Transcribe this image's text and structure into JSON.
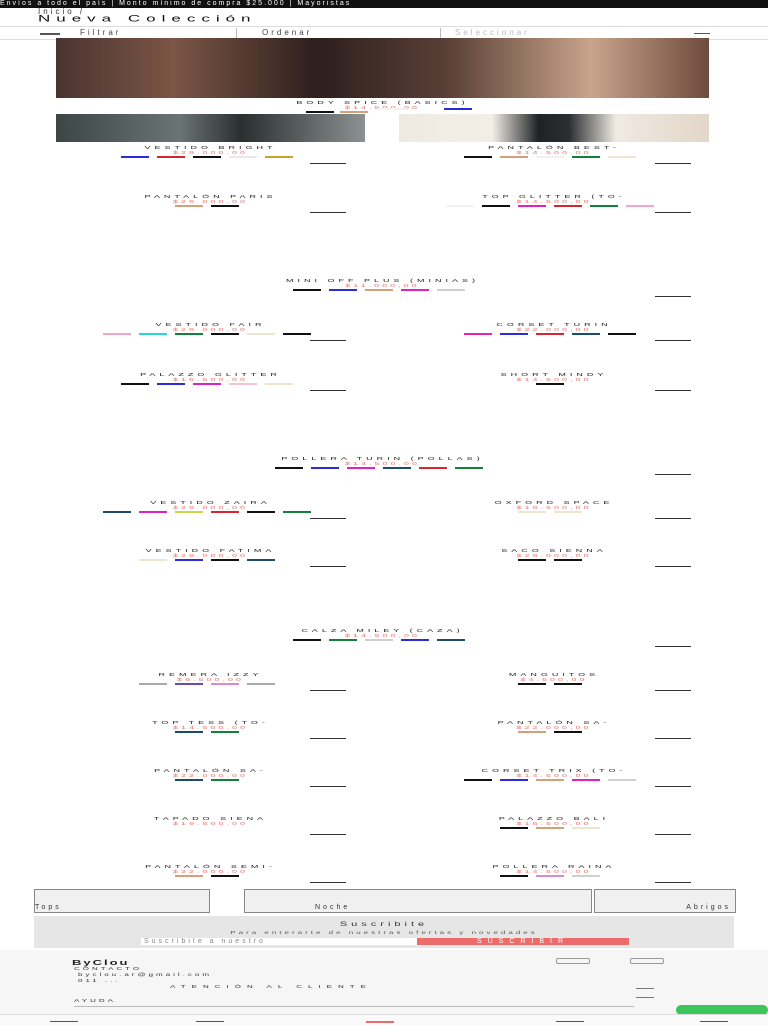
{
  "announcement": "Envíos a todo el país | Monto mínimo de compra $25.000 | Mayoristas",
  "breadcrumb": "Inicio /",
  "page_title": "Nueva Colección",
  "toolbar": {
    "filter_label": "Filtrar",
    "sort_label": "Ordenar",
    "sort_value": "Seleccionar"
  },
  "featured": {
    "name": "BODY SPICE (BASICS)",
    "price": "$14.500,00"
  },
  "products": [
    {
      "name": "VESTIDO BRIGHT",
      "price": "$29.000,00"
    },
    {
      "name": "PANTALÓN BEST-",
      "price": "$14.500,00"
    },
    {
      "name": "PANTALÓN PARIS",
      "price": "$29.000,00"
    },
    {
      "name": "TOP GLITTER (TO-",
      "price": "$14.500,00"
    },
    {
      "name": "MINI OFF PLUS (MINIAS)",
      "price": "$11.000,00"
    },
    {
      "name": "VESTIDO FAIR",
      "price": "$29.000,00"
    },
    {
      "name": "CORSET TURIN",
      "price": "$22.000,00"
    },
    {
      "name": "PALAZZO GLITTER",
      "price": "$16.500,00"
    },
    {
      "name": "SHORT MINDY",
      "price": "$14.500,00"
    },
    {
      "name": "POLLERA TURIN (POLLAS)",
      "price": "$14.500,00"
    },
    {
      "name": "VESTIDO ZAIRA",
      "price": "$29.000,00"
    },
    {
      "name": "OXFORD SPACE",
      "price": "$16.500,00"
    },
    {
      "name": "VESTIDO FATIMA",
      "price": "$29.000,00"
    },
    {
      "name": "SACO SIENNA",
      "price": "$29.000,00"
    },
    {
      "name": "CALZA MILEY (CAZA)",
      "price": "$14.500,00"
    },
    {
      "name": "REMERA IZZY",
      "price": "$9.500,00"
    },
    {
      "name": "MANGUITOS",
      "price": "$4.500,00"
    },
    {
      "name": "TOP TESS (TO-",
      "price": "$14.500,00"
    },
    {
      "name": "PANTALÓN SA-",
      "price": "$22.000,00"
    },
    {
      "name": "PANTALÓN SA-",
      "price": "$22.000,00"
    },
    {
      "name": "CORSET TRIX (TO-",
      "price": "$14.500,00"
    },
    {
      "name": "TAPADO SIENA",
      "price": "$19.500,00"
    },
    {
      "name": "PALAZZO BALI",
      "price": "$16.500,00"
    },
    {
      "name": "PANTALÓN SEMI-",
      "price": "$22.000,00"
    },
    {
      "name": "POLLERA RAINA",
      "price": "$14.500,00"
    }
  ],
  "categories": [
    "Tops",
    "Noche",
    "Abrigos"
  ],
  "subscribe": {
    "title": "Suscribite",
    "text": "Para enterarte de nuestras ofertas y novedades",
    "placeholder": "Suscribite a nuestro",
    "button": "SUSCRIBIR"
  },
  "footer": {
    "brand": "ByClou",
    "contact_title": "CONTACTO",
    "email": "byclou.ar@gmail.com",
    "phone": "011 ...",
    "service": "ATENCIÓN AL CLIENTE",
    "help": "AYUDA"
  },
  "colors": {
    "price": "#e8766e",
    "accent": "#ec6b6b",
    "whatsapp": "#3cc55a"
  }
}
